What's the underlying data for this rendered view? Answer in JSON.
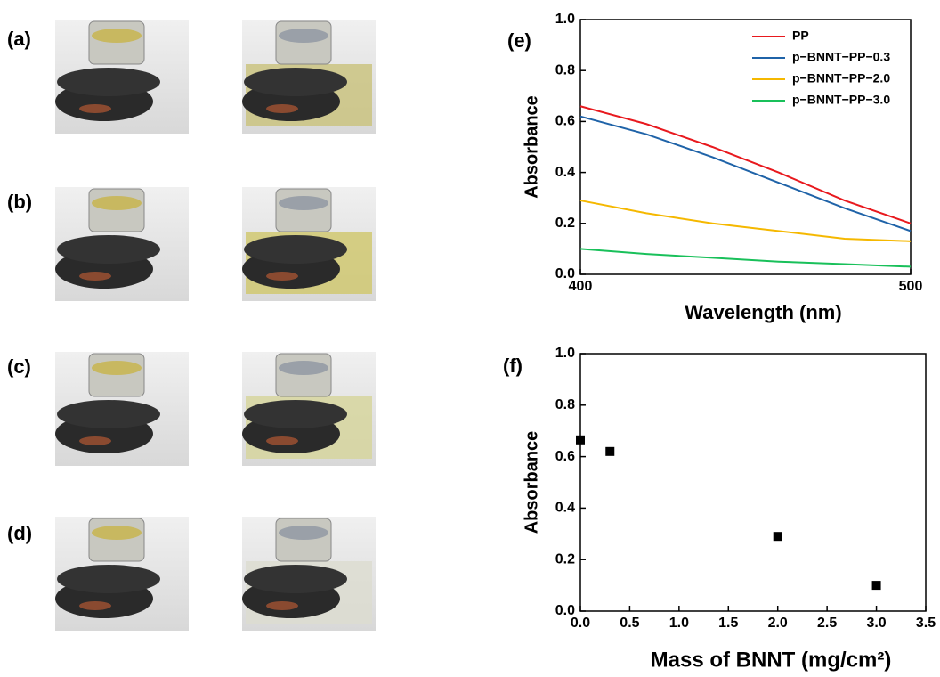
{
  "photo_panels": {
    "labels": [
      "(a)",
      "(b)",
      "(c)",
      "(d)"
    ]
  },
  "chart_data": [
    {
      "type": "line",
      "panel_label": "(e)",
      "x_label": "Wavelength (nm)",
      "y_label": "Absorbance",
      "x": [
        400,
        420,
        440,
        460,
        480,
        500
      ],
      "xlim": [
        400,
        500
      ],
      "xticks": [
        400,
        500
      ],
      "ylim": [
        0,
        1
      ],
      "yticks": [
        {
          "value": 0,
          "label": "0.0"
        },
        0.2,
        0.4,
        0.6,
        0.8,
        {
          "value": 1,
          "label": "1.0"
        }
      ],
      "legend": "upper-right",
      "series": [
        {
          "name": "PP",
          "color": "#e8191e",
          "values": [
            0.66,
            0.59,
            0.5,
            0.4,
            0.29,
            0.2
          ]
        },
        {
          "name": "p−BNNT−PP−0.3",
          "color": "#1f63a8",
          "values": [
            0.62,
            0.55,
            0.46,
            0.36,
            0.26,
            0.17
          ]
        },
        {
          "name": "p−BNNT−PP−2.0",
          "color": "#f5b800",
          "values": [
            0.29,
            0.24,
            0.2,
            0.17,
            0.14,
            0.13
          ]
        },
        {
          "name": "p−BNNT−PP−3.0",
          "color": "#19c05a",
          "values": [
            0.1,
            0.08,
            0.065,
            0.05,
            0.04,
            0.03
          ]
        }
      ]
    },
    {
      "type": "scatter",
      "panel_label": "(f)",
      "x_label": "Mass of BNNT (mg/cm²)",
      "y_label": "Absorbance",
      "x": [
        0,
        0.3,
        2,
        3
      ],
      "values": [
        0.665,
        0.62,
        0.29,
        0.1
      ],
      "color": "#000000",
      "xlim": [
        0,
        3.5
      ],
      "xticks": [
        {
          "value": 0,
          "label": "0.0"
        },
        0.5,
        {
          "value": 1,
          "label": "1.0"
        },
        1.5,
        {
          "value": 2,
          "label": "2.0"
        },
        2.5,
        {
          "value": 3,
          "label": "3.0"
        },
        3.5
      ],
      "ylim": [
        0,
        1
      ],
      "yticks": [
        {
          "value": 0,
          "label": "0.0"
        },
        0.2,
        0.4,
        0.6,
        0.8,
        {
          "value": 1,
          "label": "1.0"
        }
      ]
    }
  ]
}
